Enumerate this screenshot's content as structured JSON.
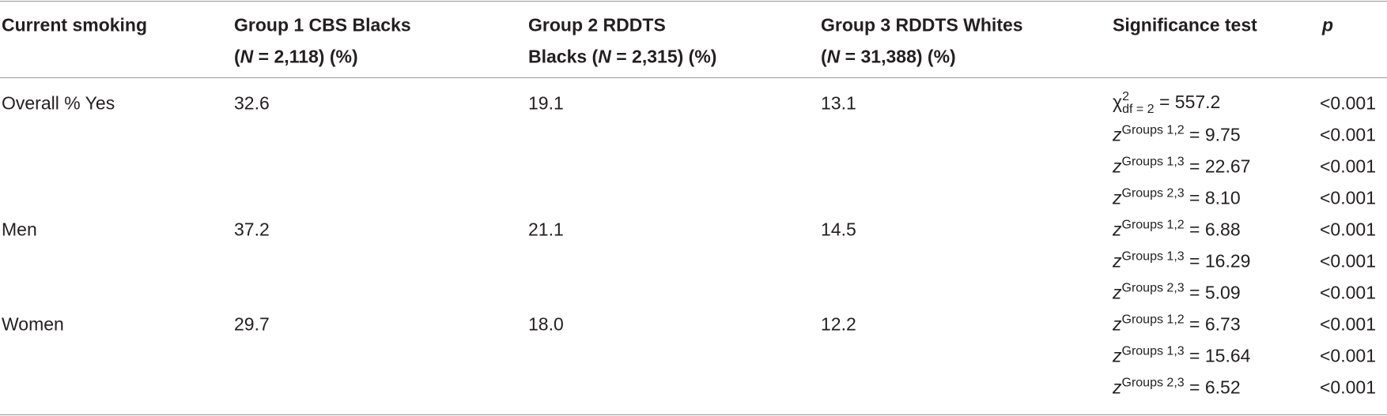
{
  "table": {
    "columns": [
      [
        [
          {
            "text": "Current smoking"
          }
        ]
      ],
      [
        [
          {
            "text": "Group 1 CBS Blacks"
          }
        ],
        [
          {
            "text": "("
          },
          {
            "text": "N",
            "italic": true
          },
          {
            "text": " = 2,118) (%)"
          }
        ]
      ],
      [
        [
          {
            "text": "Group 2 RDDTS"
          }
        ],
        [
          {
            "text": "Blacks ("
          },
          {
            "text": "N",
            "italic": true
          },
          {
            "text": " = 2,315) (%)"
          }
        ]
      ],
      [
        [
          {
            "text": "Group 3 RDDTS Whites"
          }
        ],
        [
          {
            "text": "("
          },
          {
            "text": "N",
            "italic": true
          },
          {
            "text": " = 31,388) (%)"
          }
        ]
      ],
      [
        [
          {
            "text": "Significance test"
          }
        ]
      ],
      [
        [
          {
            "text": "p",
            "italic": true
          }
        ]
      ]
    ],
    "rows": [
      {
        "label": "Overall % Yes",
        "group1": "32.6",
        "group2": "19.1",
        "group3": "13.1",
        "tests": [
          {
            "symbol": "χ",
            "sup": "2",
            "sub": "df = 2",
            "value": " = 557.2",
            "p": "<0.001"
          },
          {
            "symbol": "z",
            "sup": "Groups 1,2",
            "value": " = 9.75",
            "p": "<0.001"
          },
          {
            "symbol": "z",
            "sup": "Groups 1,3",
            "value": " = 22.67",
            "p": "<0.001"
          },
          {
            "symbol": "z",
            "sup": "Groups 2,3",
            "value": " = 8.10",
            "p": "<0.001"
          }
        ]
      },
      {
        "label": "Men",
        "group1": "37.2",
        "group2": "21.1",
        "group3": "14.5",
        "tests": [
          {
            "symbol": "z",
            "sup": "Groups 1,2",
            "value": " = 6.88",
            "p": "<0.001"
          },
          {
            "symbol": "z",
            "sup": "Groups 1,3",
            "value": " = 16.29",
            "p": "<0.001"
          },
          {
            "symbol": "z",
            "sup": "Groups 2,3",
            "value": " = 5.09",
            "p": "<0.001"
          }
        ]
      },
      {
        "label": "Women",
        "group1": "29.7",
        "group2": "18.0",
        "group3": "12.2",
        "tests": [
          {
            "symbol": "z",
            "sup": "Groups 1,2",
            "value": " = 6.73",
            "p": "<0.001"
          },
          {
            "symbol": "z",
            "sup": "Groups 1,3",
            "value": " = 15.64",
            "p": "<0.001"
          },
          {
            "symbol": "z",
            "sup": "Groups 2,3",
            "value": " = 6.52",
            "p": "<0.001"
          }
        ]
      }
    ]
  }
}
